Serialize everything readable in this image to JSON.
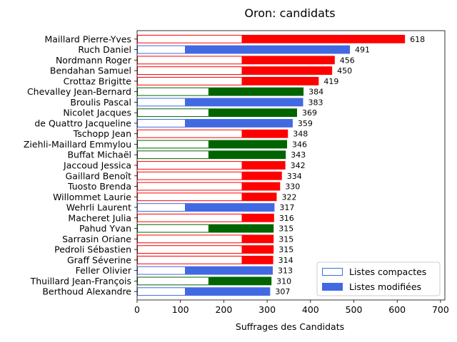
{
  "chart_data": {
    "type": "bar",
    "orientation": "horizontal",
    "title": "Oron: candidats",
    "xlabel": "Suffrages des Candidats",
    "ylabel": "",
    "xlim": [
      0,
      710
    ],
    "xticks": [
      0,
      100,
      200,
      300,
      400,
      500,
      600,
      700
    ],
    "grid": false,
    "legend_position": "lower-right",
    "legend": [
      {
        "label": "Listes compactes",
        "style": "outline",
        "color": "#4169e1"
      },
      {
        "label": "Listes modifiées",
        "style": "filled",
        "color": "#4169e1"
      }
    ],
    "party_colors": {
      "red": "#ff0000",
      "blue": "#4169e1",
      "green": "#006400"
    },
    "candidates": [
      {
        "name": "Maillard Pierre-Yves",
        "total": 618,
        "compact": 243,
        "color": "red"
      },
      {
        "name": "Ruch Daniel",
        "total": 491,
        "compact": 112,
        "color": "blue"
      },
      {
        "name": "Nordmann Roger",
        "total": 456,
        "compact": 243,
        "color": "red"
      },
      {
        "name": "Bendahan Samuel",
        "total": 450,
        "compact": 243,
        "color": "red"
      },
      {
        "name": "Crottaz Brigitte",
        "total": 419,
        "compact": 243,
        "color": "red"
      },
      {
        "name": "Chevalley Jean-Bernard",
        "total": 384,
        "compact": 166,
        "color": "green"
      },
      {
        "name": "Broulis Pascal",
        "total": 383,
        "compact": 112,
        "color": "blue"
      },
      {
        "name": "Nicolet Jacques",
        "total": 369,
        "compact": 166,
        "color": "green"
      },
      {
        "name": "de Quattro Jacqueline",
        "total": 359,
        "compact": 112,
        "color": "blue"
      },
      {
        "name": "Tschopp Jean",
        "total": 348,
        "compact": 243,
        "color": "red"
      },
      {
        "name": "Ziehli-Maillard Emmylou",
        "total": 346,
        "compact": 166,
        "color": "green"
      },
      {
        "name": "Buffat Michaël",
        "total": 343,
        "compact": 166,
        "color": "green"
      },
      {
        "name": "Jaccoud Jessica",
        "total": 342,
        "compact": 243,
        "color": "red"
      },
      {
        "name": "Gaillard Benoît",
        "total": 334,
        "compact": 243,
        "color": "red"
      },
      {
        "name": "Tuosto Brenda",
        "total": 330,
        "compact": 243,
        "color": "red"
      },
      {
        "name": "Willommet Laurie",
        "total": 322,
        "compact": 243,
        "color": "red"
      },
      {
        "name": "Wehrli Laurent",
        "total": 317,
        "compact": 112,
        "color": "blue"
      },
      {
        "name": "Macheret Julia",
        "total": 316,
        "compact": 243,
        "color": "red"
      },
      {
        "name": "Pahud Yvan",
        "total": 315,
        "compact": 166,
        "color": "green"
      },
      {
        "name": "Sarrasin Oriane",
        "total": 315,
        "compact": 243,
        "color": "red"
      },
      {
        "name": "Pedroli Sébastien",
        "total": 315,
        "compact": 243,
        "color": "red"
      },
      {
        "name": "Graff Séverine",
        "total": 314,
        "compact": 243,
        "color": "red"
      },
      {
        "name": "Feller Olivier",
        "total": 313,
        "compact": 112,
        "color": "blue"
      },
      {
        "name": "Thuillard Jean-François",
        "total": 310,
        "compact": 166,
        "color": "green"
      },
      {
        "name": "Berthoud Alexandre",
        "total": 307,
        "compact": 112,
        "color": "blue"
      }
    ]
  }
}
